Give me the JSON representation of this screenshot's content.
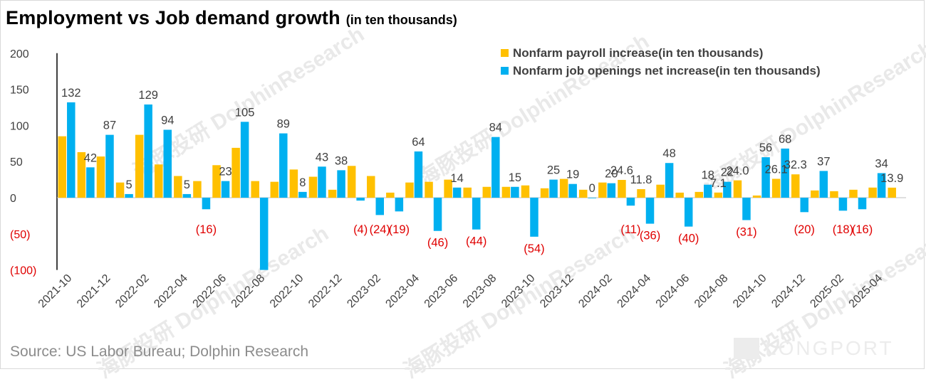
{
  "header": {
    "title": "Employment vs Job demand growth",
    "subtitle": "(in ten thousands)"
  },
  "footer": {
    "source": "Source: US Labor Bureau; Dolphin Research",
    "brand": "LONGPORT"
  },
  "colors": {
    "payroll": "#FFC000",
    "openings": "#00B0F0",
    "negative_label": "#E00000",
    "axis": "#000000"
  },
  "chart_data": {
    "type": "bar",
    "title": "Employment vs Job demand growth",
    "subtitle": "(in ten thousands)",
    "xlabel": "",
    "ylabel": "",
    "ylim": [
      -100,
      200
    ],
    "y_ticks": [
      200,
      150,
      100,
      50,
      0,
      -50,
      -100
    ],
    "y_tick_labels": [
      "200",
      "150",
      "100",
      "50",
      "0",
      "(50)",
      "(100)"
    ],
    "legend_position": "top-right",
    "grid": false,
    "categories": [
      "2021-10",
      "2021-11",
      "2021-12",
      "2022-01",
      "2022-02",
      "2022-03",
      "2022-04",
      "2022-05",
      "2022-06",
      "2022-07",
      "2022-08",
      "2022-09",
      "2022-10",
      "2022-11",
      "2022-12",
      "2023-01",
      "2023-02",
      "2023-03",
      "2023-04",
      "2023-05",
      "2023-06",
      "2023-07",
      "2023-08",
      "2023-09",
      "2023-10",
      "2023-11",
      "2023-12",
      "2024-01",
      "2024-02",
      "2024-03",
      "2024-04",
      "2024-05",
      "2024-06",
      "2024-07",
      "2024-08",
      "2024-09",
      "2024-10",
      "2024-11",
      "2024-12",
      "2025-01",
      "2025-02",
      "2025-03",
      "2025-04",
      "2025-05"
    ],
    "x_tick_labels": [
      "2021-10",
      "2021-12",
      "2022-02",
      "2022-04",
      "2022-06",
      "2022-08",
      "2022-10",
      "2022-12",
      "2023-02",
      "2023-04",
      "2023-06",
      "2023-08",
      "2023-10",
      "2023-12",
      "2024-02",
      "2024-04",
      "2024-06",
      "2024-08",
      "2024-10",
      "2024-12",
      "2025-02",
      "2025-04"
    ],
    "series": [
      {
        "name": "Nonfarm payroll increase(in ten thousands)",
        "values": [
          85,
          63,
          57,
          21,
          87,
          46,
          30,
          23,
          45,
          69,
          23,
          22,
          39,
          29,
          11,
          44,
          30,
          7,
          21,
          22,
          25,
          14,
          15,
          15,
          17,
          13,
          26,
          11,
          21,
          24.6,
          11.8,
          18,
          7,
          8,
          7.1,
          24,
          3,
          26.1,
          32.3,
          10,
          9,
          11,
          14,
          13.9
        ]
      },
      {
        "name": "Nonfarm job openings net increase(in ten thousands)",
        "values": [
          132,
          42,
          87,
          5,
          129,
          94,
          5,
          -16,
          23,
          105,
          -100,
          89,
          8,
          43,
          38,
          -4,
          -24,
          -19,
          64,
          -46,
          14,
          -44,
          84,
          15,
          -54,
          25,
          19,
          0,
          20,
          -11,
          -36,
          48,
          -40,
          18,
          22,
          -31,
          56,
          68,
          -20,
          37,
          -18,
          -16,
          34,
          null
        ]
      }
    ],
    "data_labels": [
      {
        "series": 1,
        "index": 0,
        "text": "132"
      },
      {
        "series": 1,
        "index": 1,
        "text": "42"
      },
      {
        "series": 1,
        "index": 2,
        "text": "87"
      },
      {
        "series": 1,
        "index": 3,
        "text": "5"
      },
      {
        "series": 1,
        "index": 4,
        "text": "129"
      },
      {
        "series": 1,
        "index": 5,
        "text": "94"
      },
      {
        "series": 1,
        "index": 6,
        "text": "5"
      },
      {
        "series": 1,
        "index": 7,
        "text": "(16)"
      },
      {
        "series": 1,
        "index": 8,
        "text": "23"
      },
      {
        "series": 1,
        "index": 9,
        "text": "105"
      },
      {
        "series": 1,
        "index": 11,
        "text": "89"
      },
      {
        "series": 1,
        "index": 12,
        "text": "8"
      },
      {
        "series": 1,
        "index": 13,
        "text": "43"
      },
      {
        "series": 1,
        "index": 14,
        "text": "38"
      },
      {
        "series": 1,
        "index": 15,
        "text": "(4)"
      },
      {
        "series": 1,
        "index": 16,
        "text": "(24)"
      },
      {
        "series": 1,
        "index": 17,
        "text": "(19)"
      },
      {
        "series": 1,
        "index": 18,
        "text": "64"
      },
      {
        "series": 1,
        "index": 19,
        "text": "(46)"
      },
      {
        "series": 1,
        "index": 20,
        "text": "14"
      },
      {
        "series": 1,
        "index": 21,
        "text": "(44)"
      },
      {
        "series": 1,
        "index": 22,
        "text": "84"
      },
      {
        "series": 1,
        "index": 23,
        "text": "15"
      },
      {
        "series": 1,
        "index": 24,
        "text": "(54)"
      },
      {
        "series": 1,
        "index": 25,
        "text": "25"
      },
      {
        "series": 1,
        "index": 26,
        "text": "19"
      },
      {
        "series": 1,
        "index": 27,
        "text": "0"
      },
      {
        "series": 1,
        "index": 28,
        "text": "20"
      },
      {
        "series": 0,
        "index": 29,
        "text": "24.6"
      },
      {
        "series": 1,
        "index": 29,
        "text": "(11)"
      },
      {
        "series": 0,
        "index": 30,
        "text": "11.8"
      },
      {
        "series": 1,
        "index": 30,
        "text": "(36)"
      },
      {
        "series": 1,
        "index": 31,
        "text": "48"
      },
      {
        "series": 1,
        "index": 32,
        "text": "(40)"
      },
      {
        "series": 1,
        "index": 33,
        "text": "18"
      },
      {
        "series": 0,
        "index": 34,
        "text": "7.1"
      },
      {
        "series": 1,
        "index": 34,
        "text": "22"
      },
      {
        "series": 0,
        "index": 35,
        "text": "24.0"
      },
      {
        "series": 1,
        "index": 35,
        "text": "(31)"
      },
      {
        "series": 1,
        "index": 36,
        "text": "56"
      },
      {
        "series": 0,
        "index": 37,
        "text": "26.1"
      },
      {
        "series": 1,
        "index": 37,
        "text": "68"
      },
      {
        "series": 0,
        "index": 38,
        "text": "32.3"
      },
      {
        "series": 1,
        "index": 38,
        "text": "(20)"
      },
      {
        "series": 1,
        "index": 39,
        "text": "37"
      },
      {
        "series": 1,
        "index": 40,
        "text": "(18)"
      },
      {
        "series": 1,
        "index": 41,
        "text": "(16)"
      },
      {
        "series": 1,
        "index": 42,
        "text": "34"
      },
      {
        "series": 0,
        "index": 43,
        "text": "13.9"
      }
    ]
  }
}
